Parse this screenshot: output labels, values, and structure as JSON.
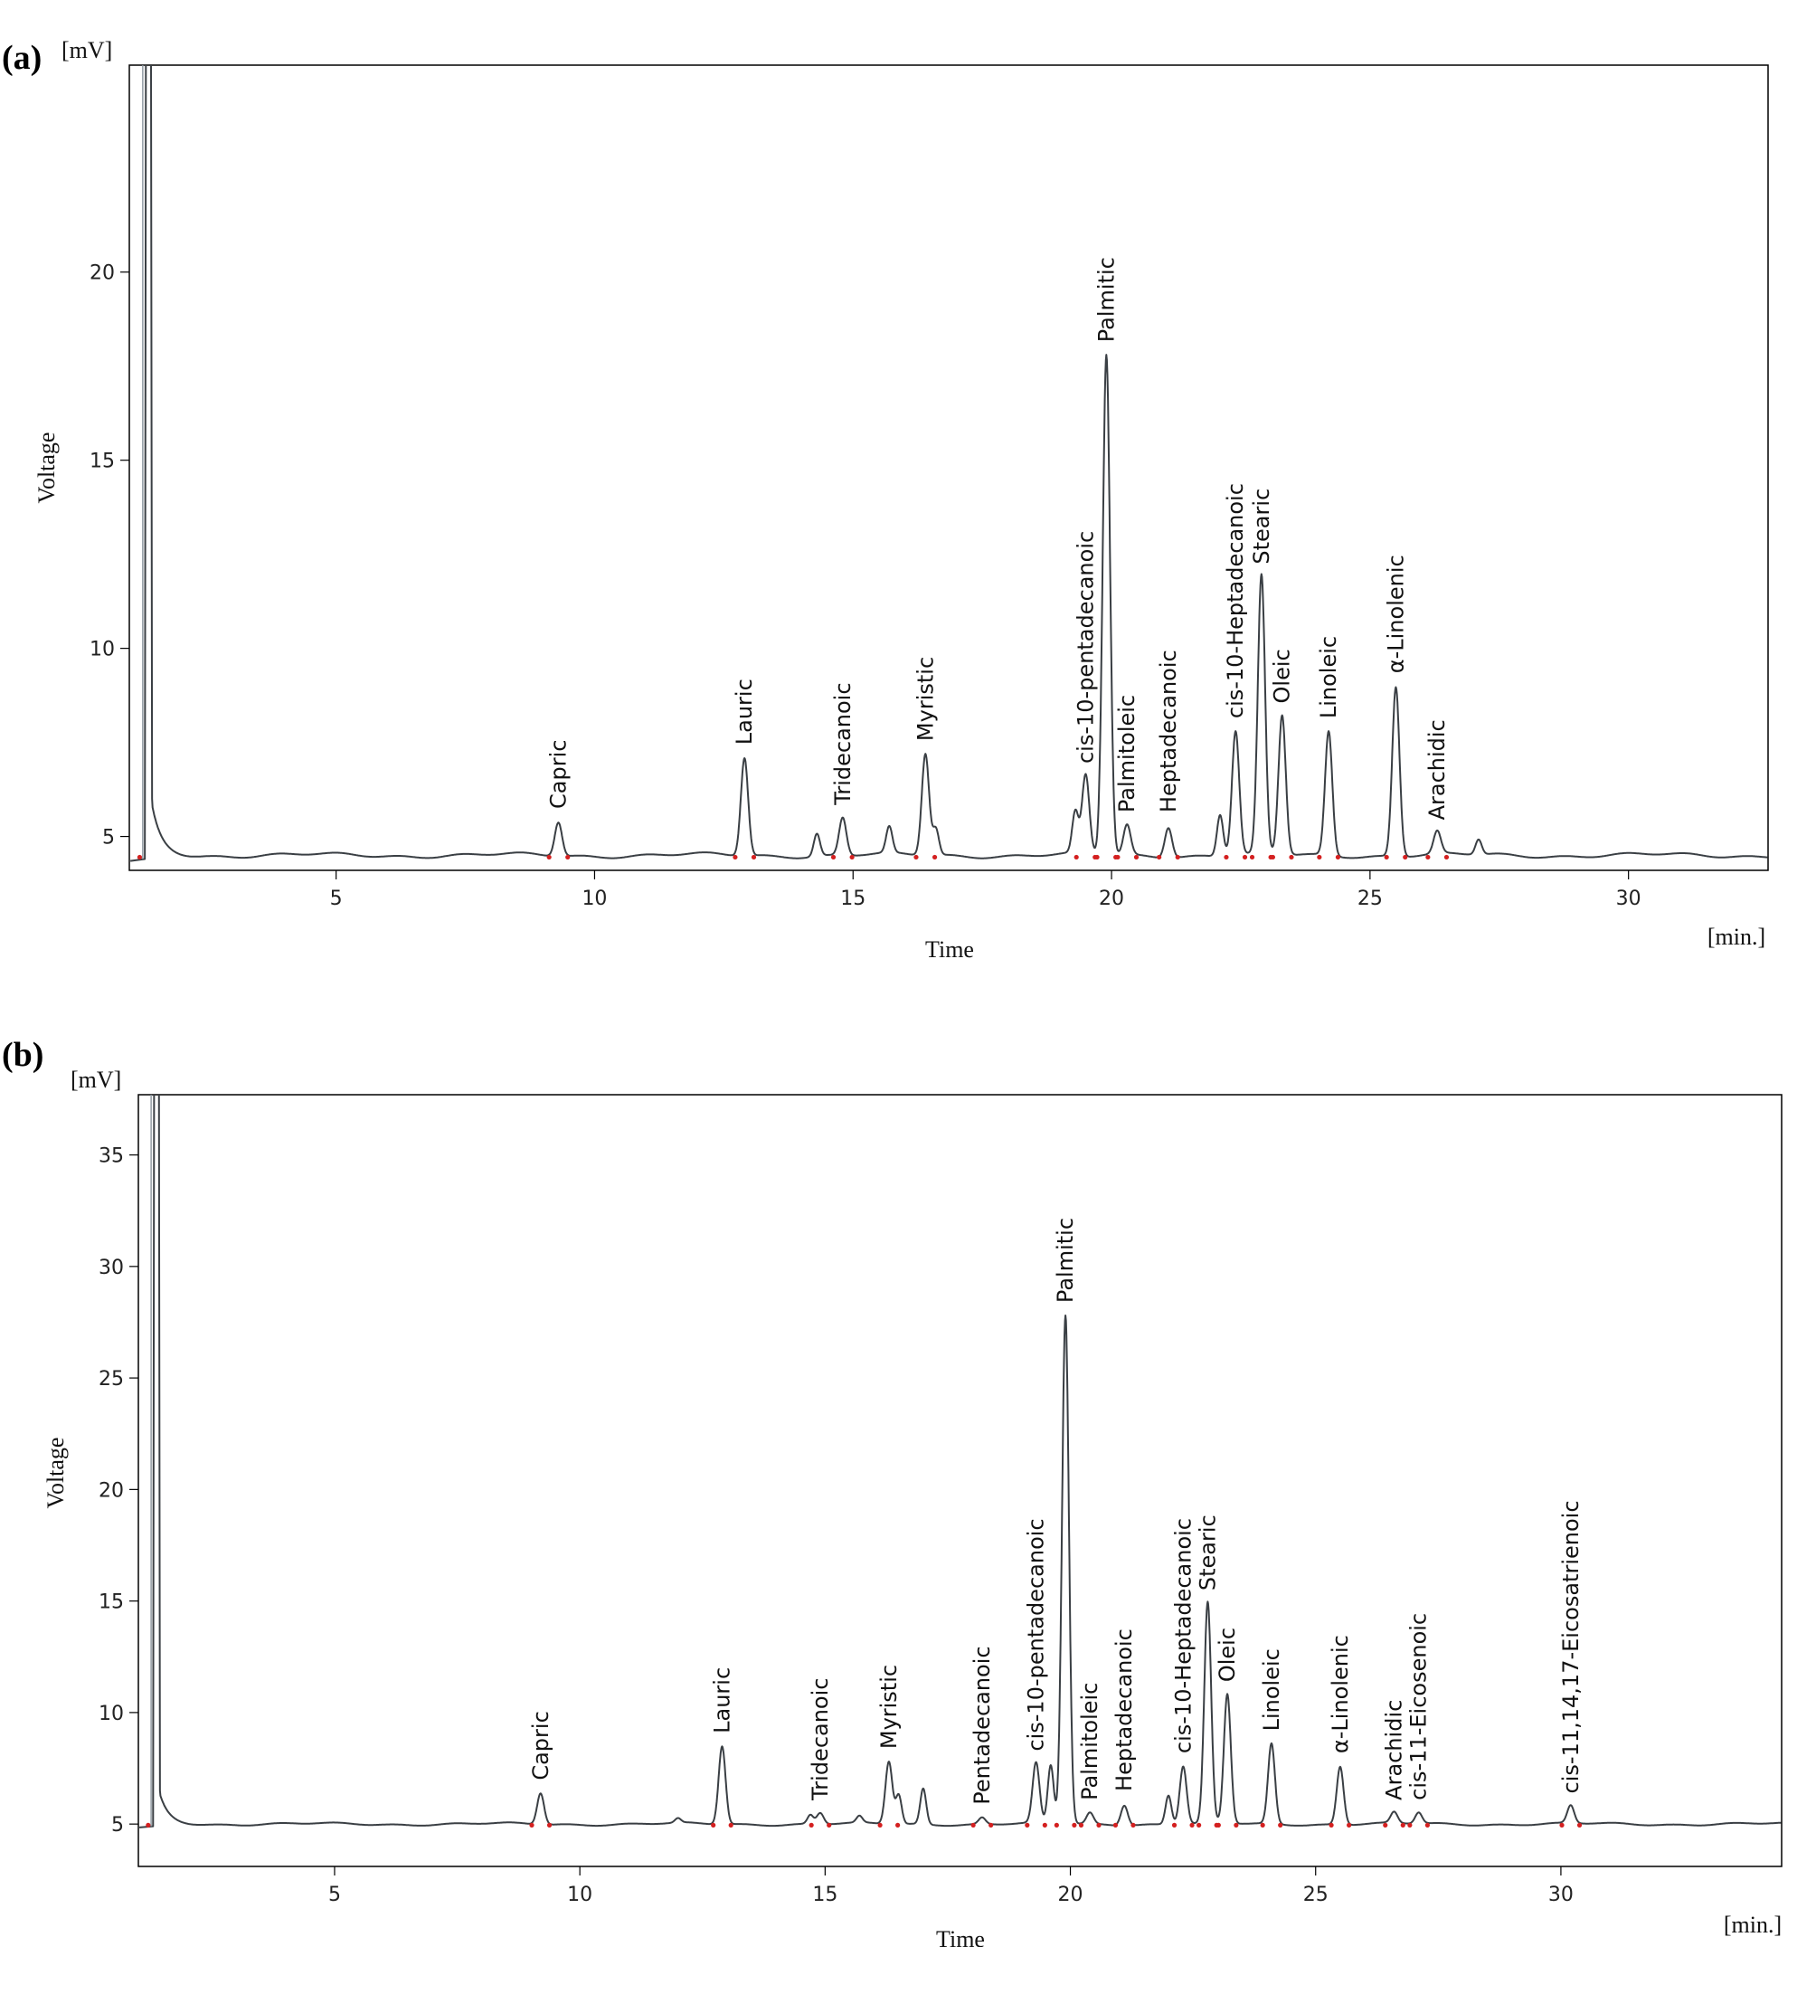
{
  "chart_data": [
    {
      "type": "line",
      "panel_label": "(a)",
      "ylabel": "Voltage",
      "xlabel": "Time",
      "y_unit": "[mV]",
      "x_unit": "[min.]",
      "xlim": [
        1.0,
        32.7
      ],
      "ylim": [
        4.1,
        25.5
      ],
      "x_ticks": [
        5,
        10,
        15,
        20,
        25,
        30
      ],
      "y_ticks": [
        5,
        10,
        15,
        20
      ],
      "baseline": 4.5,
      "solvent_peak": {
        "x": 1.4,
        "width": 0.12
      },
      "peaks": [
        {
          "name": "Capric",
          "x": 9.3,
          "y": 5.4
        },
        {
          "name": "Lauric",
          "x": 12.9,
          "y": 7.1
        },
        {
          "name": "Tridecanoic",
          "x": 14.8,
          "y": 5.5
        },
        {
          "name": "Myristic",
          "x": 16.4,
          "y": 7.2
        },
        {
          "name": "cis-10-pentadecanoic",
          "x": 19.5,
          "y": 6.6
        },
        {
          "name": "Palmitic",
          "x": 19.9,
          "y": 17.8
        },
        {
          "name": "Palmitoleic",
          "x": 20.3,
          "y": 5.3
        },
        {
          "name": "Heptadecanoic",
          "x": 21.1,
          "y": 5.3
        },
        {
          "name": "cis-10-Heptadecanoic",
          "x": 22.4,
          "y": 7.8
        },
        {
          "name": "Stearic",
          "x": 22.9,
          "y": 11.9
        },
        {
          "name": "Oleic",
          "x": 23.3,
          "y": 8.2
        },
        {
          "name": "Linoleic",
          "x": 24.2,
          "y": 7.8
        },
        {
          "name": "α-Linolenic",
          "x": 25.5,
          "y": 9.0
        },
        {
          "name": "Arachidic",
          "x": 26.3,
          "y": 5.1
        }
      ],
      "minor_peaks": [
        {
          "x": 14.3,
          "y": 5.1
        },
        {
          "x": 15.7,
          "y": 5.2
        },
        {
          "x": 16.6,
          "y": 5.2
        },
        {
          "x": 19.3,
          "y": 5.6
        },
        {
          "x": 22.1,
          "y": 5.6
        },
        {
          "x": 27.1,
          "y": 4.9
        }
      ]
    },
    {
      "type": "line",
      "panel_label": "(b)",
      "ylabel": "Voltage",
      "xlabel": "Time",
      "y_unit": "[mV]",
      "x_unit": "[min.]",
      "xlim": [
        1.0,
        34.5
      ],
      "ylim": [
        3.1,
        37.7
      ],
      "x_ticks": [
        5,
        10,
        15,
        20,
        25,
        30
      ],
      "y_ticks": [
        5,
        10,
        15,
        20,
        25,
        30,
        35
      ],
      "baseline": 5.0,
      "solvent_peak": {
        "x": 1.4,
        "width": 0.12
      },
      "peaks": [
        {
          "name": "Capric",
          "x": 9.2,
          "y": 6.4
        },
        {
          "name": "Lauric",
          "x": 12.9,
          "y": 8.5
        },
        {
          "name": "Tridecanoic",
          "x": 14.9,
          "y": 5.5
        },
        {
          "name": "Myristic",
          "x": 16.3,
          "y": 7.8
        },
        {
          "name": "Pentadecanoic",
          "x": 18.2,
          "y": 5.3
        },
        {
          "name": "cis-10-pentadecanoic",
          "x": 19.3,
          "y": 7.7
        },
        {
          "name": "Palmitic",
          "x": 19.9,
          "y": 27.8
        },
        {
          "name": "Palmitoleic",
          "x": 20.4,
          "y": 5.5
        },
        {
          "name": "Heptadecanoic",
          "x": 21.1,
          "y": 5.9
        },
        {
          "name": "cis-10-Heptadecanoic",
          "x": 22.3,
          "y": 7.6
        },
        {
          "name": "Stearic",
          "x": 22.8,
          "y": 14.9
        },
        {
          "name": "Oleic",
          "x": 23.2,
          "y": 10.8
        },
        {
          "name": "Linoleic",
          "x": 24.1,
          "y": 8.6
        },
        {
          "name": "α-Linolenic",
          "x": 25.5,
          "y": 7.6
        },
        {
          "name": "Arachidic",
          "x": 26.6,
          "y": 5.5
        },
        {
          "name": "cis-11-Eicosenoic",
          "x": 27.1,
          "y": 5.5
        },
        {
          "name": "cis-11,14,17-Eicosatrienoic",
          "x": 30.2,
          "y": 5.8
        }
      ],
      "minor_peaks": [
        {
          "x": 12.0,
          "y": 5.2
        },
        {
          "x": 14.7,
          "y": 5.4
        },
        {
          "x": 15.7,
          "y": 5.3
        },
        {
          "x": 16.5,
          "y": 6.3
        },
        {
          "x": 17.0,
          "y": 6.6
        },
        {
          "x": 19.6,
          "y": 7.6
        },
        {
          "x": 22.0,
          "y": 6.3
        }
      ]
    }
  ]
}
